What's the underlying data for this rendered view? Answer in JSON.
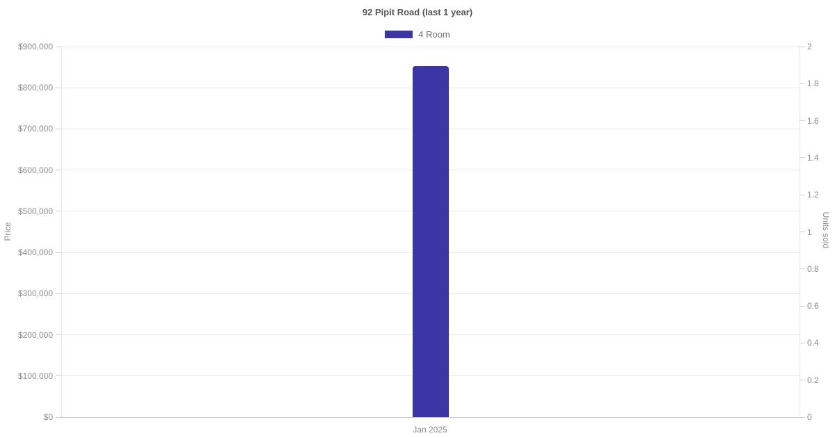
{
  "chart_data": {
    "type": "bar",
    "title": "92 Pipit Road (last 1 year)",
    "categories": [
      "Jan 2025"
    ],
    "series": [
      {
        "name": "4 Room",
        "color": "#3b35a6",
        "axis": "left",
        "values": [
          852000
        ]
      }
    ],
    "axes": {
      "left": {
        "label": "Price",
        "min": 0,
        "max": 900000,
        "step": 100000,
        "tick_labels": [
          "$0",
          "$100,000",
          "$200,000",
          "$300,000",
          "$400,000",
          "$500,000",
          "$600,000",
          "$700,000",
          "$800,000",
          "$900,000"
        ]
      },
      "right": {
        "label": "Units sold",
        "min": 0,
        "max": 2,
        "step": 0.2,
        "tick_labels": [
          "0",
          "0.2",
          "0.4",
          "0.6",
          "0.8",
          "1",
          "1.2",
          "1.4",
          "1.6",
          "1.8",
          "2"
        ]
      }
    },
    "legend": {
      "position": "top",
      "items": [
        {
          "label": "4 Room",
          "color": "#3b35a6"
        }
      ]
    },
    "grid": true,
    "background": "#ffffff"
  }
}
